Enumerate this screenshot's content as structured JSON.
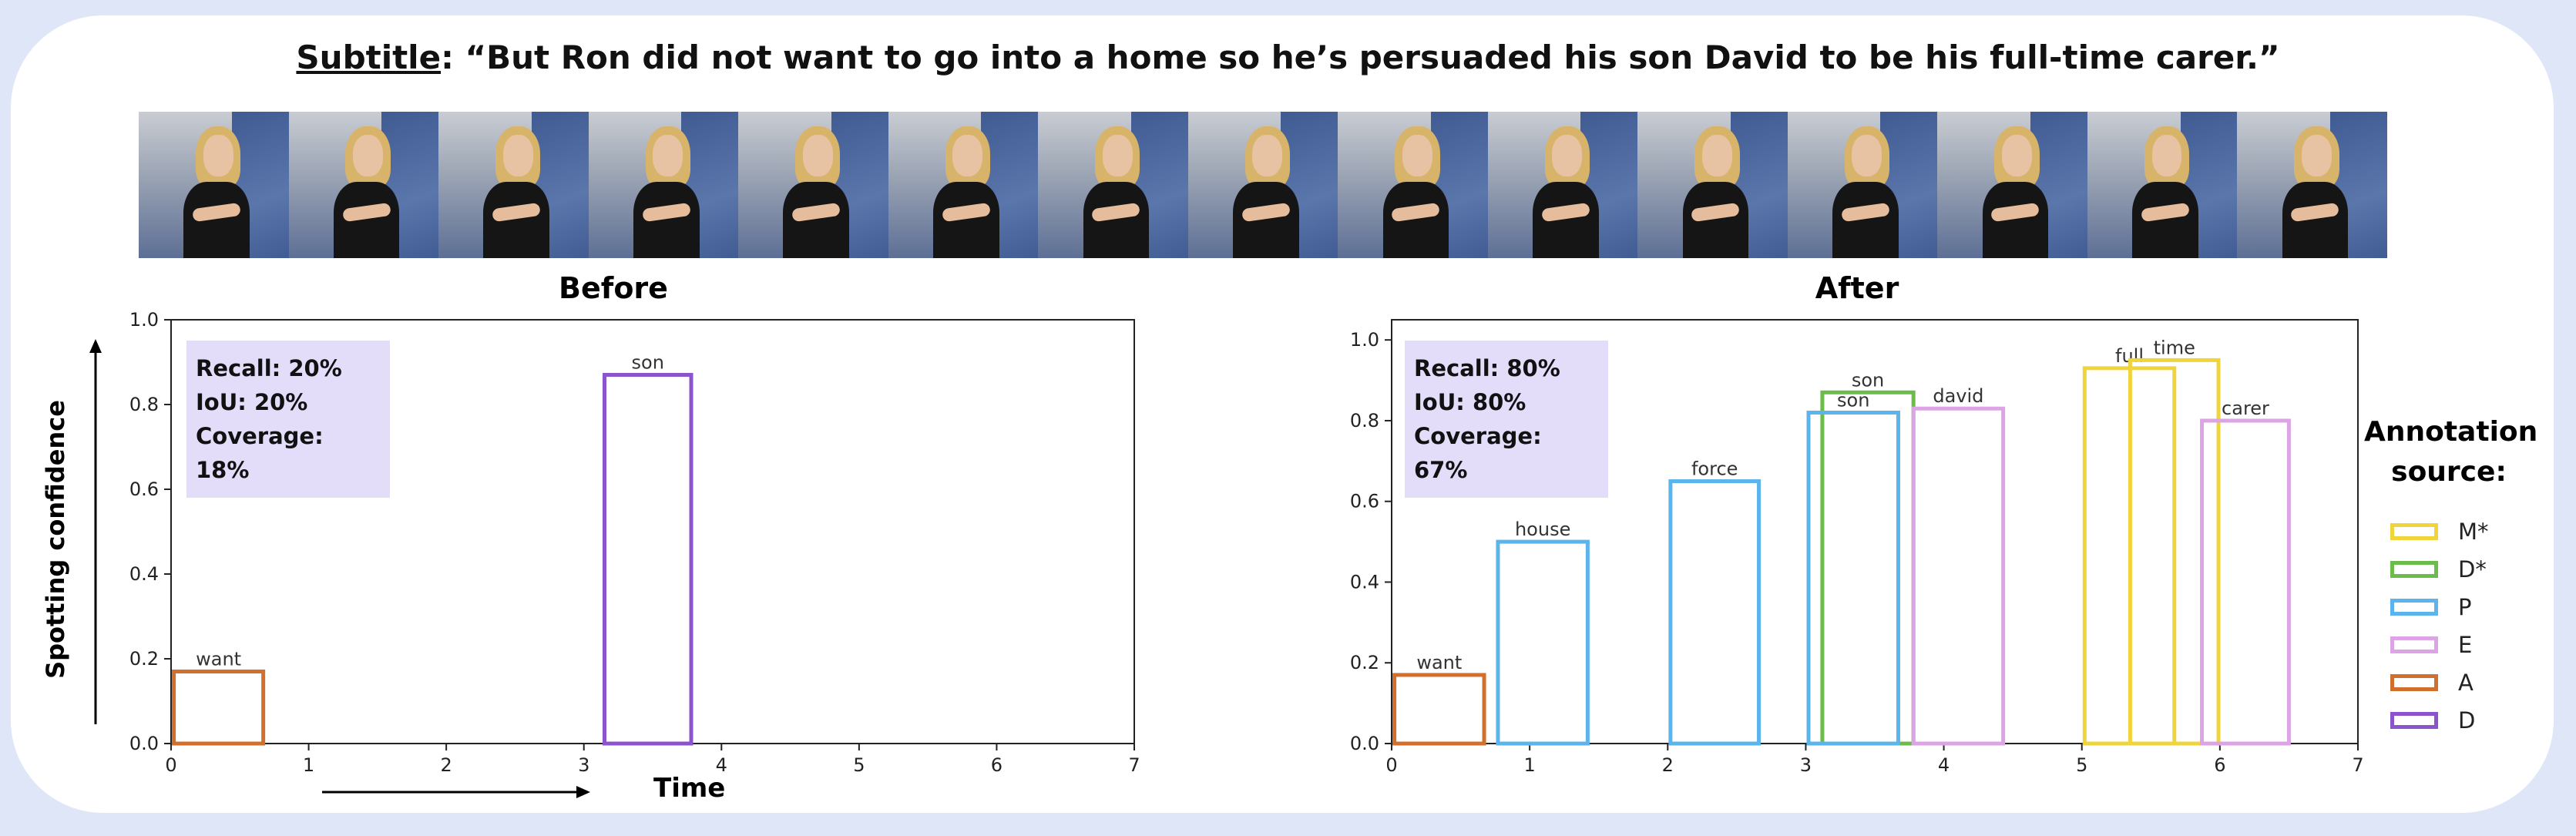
{
  "subtitle": {
    "label": "Subtitle",
    "text": ": “But Ron did not want to go into a home so he’s persuaded his son David to be his full-time carer.”"
  },
  "frames": 15,
  "figure": {
    "ylabel": "Spotting confidence",
    "time_label": "Time"
  },
  "legend": {
    "title": "Annotation source:",
    "items": [
      {
        "label": "M*",
        "color": "#f0d43c"
      },
      {
        "label": "D*",
        "color": "#6cbc4c"
      },
      {
        "label": "P",
        "color": "#5cb4ec"
      },
      {
        "label": "E",
        "color": "#dca4e4"
      },
      {
        "label": "A",
        "color": "#d0702c"
      },
      {
        "label": "D",
        "color": "#8c54cc"
      }
    ]
  },
  "chart_data": [
    {
      "type": "bar",
      "title": "Before",
      "xlim": [
        0,
        7
      ],
      "ylim": [
        0,
        1.0
      ],
      "xticks": [
        "0",
        "1",
        "2",
        "3",
        "4",
        "5",
        "6",
        "7"
      ],
      "yticks": [
        "0.0",
        "0.2",
        "0.4",
        "0.6",
        "0.8",
        "1.0"
      ],
      "stats": {
        "recall": "Recall: 20%",
        "iou": "IoU: 20%",
        "coverage": "Coverage: 18%"
      },
      "bars": [
        {
          "label": "want",
          "start": 0.02,
          "end": 0.67,
          "value": 0.17,
          "source": "A"
        },
        {
          "label": "son",
          "start": 3.15,
          "end": 3.78,
          "value": 0.87,
          "source": "D"
        }
      ]
    },
    {
      "type": "bar",
      "title": "After",
      "xlim": [
        0,
        7
      ],
      "ylim": [
        0,
        1.05
      ],
      "xticks": [
        "0",
        "1",
        "2",
        "3",
        "4",
        "5",
        "6",
        "7"
      ],
      "yticks": [
        "0.0",
        "0.2",
        "0.4",
        "0.6",
        "0.8",
        "1.0"
      ],
      "stats": {
        "recall": "Recall: 80%",
        "iou": "IoU: 80%",
        "coverage": "Coverage: 67%"
      },
      "bars": [
        {
          "label": "want",
          "start": 0.02,
          "end": 0.67,
          "value": 0.17,
          "source": "A"
        },
        {
          "label": "house",
          "start": 0.77,
          "end": 1.42,
          "value": 0.5,
          "source": "P"
        },
        {
          "label": "force",
          "start": 2.02,
          "end": 2.66,
          "value": 0.65,
          "source": "P"
        },
        {
          "label": "son",
          "start": 3.12,
          "end": 3.78,
          "value": 0.87,
          "source": "D*"
        },
        {
          "label": "son",
          "start": 3.02,
          "end": 3.67,
          "value": 0.82,
          "source": "P"
        },
        {
          "label": "david",
          "start": 3.78,
          "end": 4.43,
          "value": 0.83,
          "source": "E"
        },
        {
          "label": "full",
          "start": 5.02,
          "end": 5.67,
          "value": 0.93,
          "source": "M*"
        },
        {
          "label": "time",
          "start": 5.35,
          "end": 5.99,
          "value": 0.95,
          "source": "M*"
        },
        {
          "label": "carer",
          "start": 5.87,
          "end": 6.5,
          "value": 0.8,
          "source": "E"
        }
      ]
    }
  ]
}
